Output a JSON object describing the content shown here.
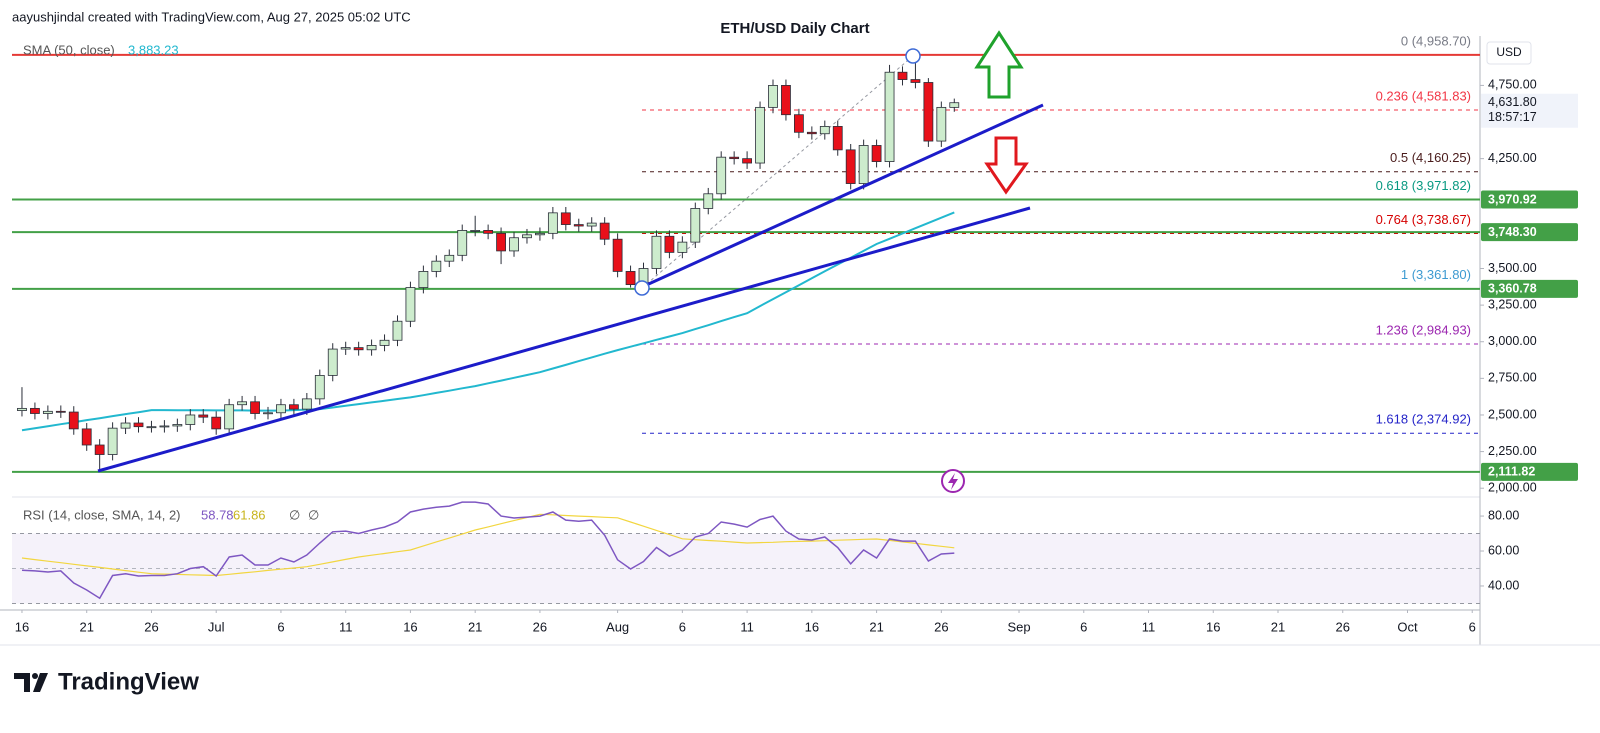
{
  "header": {
    "credit": "aayushjindal created with TradingView.com, Aug 27, 2025 05:02 UTC"
  },
  "footer": {
    "brand": "TradingView"
  },
  "chart_data": {
    "type": "candlestick",
    "title": "ETH/USD Daily Chart",
    "currency": "USD",
    "xlim": [
      -0.77,
      112.6
    ],
    "xticks": [
      {
        "value": 0,
        "label": "16"
      },
      {
        "value": 5,
        "label": "21"
      },
      {
        "value": 10,
        "label": "26"
      },
      {
        "value": 15,
        "label": "Jul"
      },
      {
        "value": 20,
        "label": "6"
      },
      {
        "value": 25,
        "label": "11"
      },
      {
        "value": 30,
        "label": "16"
      },
      {
        "value": 35,
        "label": "21"
      },
      {
        "value": 40,
        "label": "26"
      },
      {
        "value": 46,
        "label": "Aug"
      },
      {
        "value": 51,
        "label": "6"
      },
      {
        "value": 56,
        "label": "11"
      },
      {
        "value": 61,
        "label": "16"
      },
      {
        "value": 66,
        "label": "21"
      },
      {
        "value": 71,
        "label": "26"
      },
      {
        "value": 77,
        "label": "Sep"
      },
      {
        "value": 82,
        "label": "6"
      },
      {
        "value": 87,
        "label": "11"
      },
      {
        "value": 92,
        "label": "16"
      },
      {
        "value": 97,
        "label": "21"
      },
      {
        "value": 102,
        "label": "26"
      },
      {
        "value": 107,
        "label": "Oct"
      },
      {
        "value": 112,
        "label": "6"
      }
    ],
    "ylim": [
      1940,
      5060
    ],
    "yticks": [
      {
        "value": 2000,
        "label": "2,000.00"
      },
      {
        "value": 2250,
        "label": "2,250.00"
      },
      {
        "value": 2500,
        "label": "2,500.00"
      },
      {
        "value": 2750,
        "label": "2,750.00"
      },
      {
        "value": 3000,
        "label": "3,000.00"
      },
      {
        "value": 3250,
        "label": "3,250.00"
      },
      {
        "value": 3500,
        "label": "3,500.00"
      },
      {
        "value": 4250,
        "label": "4,250.00"
      },
      {
        "value": 4750,
        "label": "4,750.00"
      }
    ],
    "grid": false,
    "up_color": "#cdeccd",
    "down_color": "#e8101a",
    "outline": "#2a2e39",
    "candles": {
      "open": [
        2530,
        2545,
        2510,
        2525,
        2520,
        2405,
        2295,
        2230,
        2410,
        2445,
        2420,
        2420,
        2425,
        2435,
        2500,
        2485,
        2405,
        2570,
        2590,
        2510,
        2515,
        2570,
        2540,
        2610,
        2770,
        2950,
        2960,
        2945,
        2975,
        3010,
        3140,
        3370,
        3480,
        3550,
        3590,
        3760,
        3760,
        3740,
        3620,
        3710,
        3730,
        3740,
        3880,
        3800,
        3790,
        3810,
        3700,
        3480,
        3390,
        3500,
        3720,
        3610,
        3680,
        3910,
        4010,
        4260,
        4250,
        4220,
        4600,
        4750,
        4550,
        4430,
        4420,
        4470,
        4310,
        4080,
        4340,
        4230,
        4840,
        4790,
        4770,
        4370,
        4600
      ],
      "high": [
        2690,
        2585,
        2565,
        2565,
        2560,
        2445,
        2335,
        2450,
        2485,
        2485,
        2460,
        2465,
        2475,
        2540,
        2540,
        2525,
        2610,
        2630,
        2630,
        2555,
        2610,
        2610,
        2650,
        2810,
        2990,
        3000,
        3000,
        3015,
        3050,
        3180,
        3410,
        3520,
        3590,
        3630,
        3800,
        3860,
        3800,
        3780,
        3750,
        3770,
        3780,
        3920,
        3920,
        3840,
        3850,
        3850,
        3740,
        3520,
        3540,
        3760,
        3760,
        3720,
        3950,
        4050,
        4300,
        4300,
        4300,
        4640,
        4790,
        4790,
        4590,
        4470,
        4510,
        4510,
        4350,
        4380,
        4380,
        4890,
        4880,
        4958.7,
        4800,
        4640,
        4660
      ],
      "low": [
        2490,
        2470,
        2470,
        2480,
        2365,
        2255,
        2111.82,
        2190,
        2370,
        2380,
        2380,
        2380,
        2385,
        2395,
        2445,
        2365,
        2365,
        2530,
        2470,
        2470,
        2475,
        2500,
        2500,
        2570,
        2730,
        2910,
        2905,
        2905,
        2935,
        2970,
        3100,
        3330,
        3440,
        3510,
        3550,
        3720,
        3700,
        3530,
        3580,
        3670,
        3690,
        3700,
        3760,
        3750,
        3750,
        3660,
        3440,
        3370,
        3361.8,
        3460,
        3570,
        3570,
        3640,
        3870,
        3970,
        4210,
        4180,
        4180,
        4560,
        4510,
        4390,
        4380,
        4380,
        4270,
        4040,
        4040,
        4190,
        4190,
        4750,
        4730,
        4330,
        4330,
        4570
      ],
      "close": [
        2545,
        2510,
        2525,
        2520,
        2405,
        2295,
        2230,
        2410,
        2445,
        2420,
        2420,
        2425,
        2435,
        2500,
        2485,
        2405,
        2570,
        2590,
        2510,
        2515,
        2570,
        2540,
        2610,
        2770,
        2950,
        2960,
        2945,
        2975,
        3010,
        3140,
        3370,
        3480,
        3550,
        3590,
        3760,
        3760,
        3740,
        3620,
        3710,
        3730,
        3740,
        3880,
        3800,
        3790,
        3810,
        3700,
        3480,
        3390,
        3500,
        3720,
        3610,
        3680,
        3910,
        4010,
        4260,
        4250,
        4220,
        4600,
        4750,
        4550,
        4430,
        4420,
        4470,
        4310,
        4080,
        4340,
        4230,
        4840,
        4790,
        4770,
        4370,
        4600,
        4631.8
      ]
    },
    "sma": {
      "name": "SMA (50, close)",
      "label": "3,883.23",
      "color": "#22b8cf",
      "values": [
        2396,
        2410,
        2423,
        2437,
        2451,
        2465,
        2478,
        2492,
        2506,
        2519,
        2533,
        2533,
        2532,
        2532,
        2532,
        2531,
        2531,
        2531,
        2530,
        2530,
        2530,
        2533,
        2537,
        2540,
        2551,
        2563,
        2574,
        2586,
        2597,
        2609,
        2620,
        2635,
        2651,
        2666,
        2682,
        2697,
        2716,
        2735,
        2754,
        2773,
        2792,
        2817,
        2842,
        2868,
        2893,
        2918,
        2943,
        2966,
        2989,
        3013,
        3036,
        3059,
        3086,
        3113,
        3141,
        3168,
        3195,
        3243,
        3291,
        3338,
        3386,
        3434,
        3481,
        3527,
        3574,
        3620,
        3667,
        3703,
        3739,
        3775,
        3811,
        3847,
        3883.23
      ]
    },
    "resistance": {
      "value": 4958.7,
      "color": "#e53935"
    },
    "level_color": "#43a047",
    "levels": [
      {
        "value": 3970.92,
        "label": "3,970.92"
      },
      {
        "value": 3748.3,
        "label": "3,748.30"
      },
      {
        "value": 3360.78,
        "label": "3,360.78"
      },
      {
        "value": 2111.82,
        "label": "2,111.82"
      }
    ],
    "last_price": {
      "value": 4631.8,
      "label": "4,631.80",
      "countdown": "18:57:17"
    },
    "fib_levels": [
      {
        "label": "0 (4,958.70)",
        "price": 4958.7,
        "color": "#787b86"
      },
      {
        "label": "0.236 (4,581.83)",
        "price": 4581.83,
        "color": "#f23645"
      },
      {
        "label": "0.5 (4,160.25)",
        "price": 4160.25,
        "color": "#4a1c1c"
      },
      {
        "label": "0.618 (3,971.82)",
        "price": 3971.82,
        "color": "#089981"
      },
      {
        "label": "0.764 (3,738.67)",
        "price": 3738.67,
        "color": "#d50000"
      },
      {
        "label": "1 (3,361.80)",
        "price": 3361.8,
        "color": "#3d9ad1"
      },
      {
        "label": "1.236 (2,984.93)",
        "price": 2984.93,
        "color": "#9c27b0"
      },
      {
        "label": "1.618 (2,374.92)",
        "price": 2374.92,
        "color": "#2424c8"
      }
    ],
    "rsi": {
      "type": "line",
      "name": "RSI (14, close, SMA, 14, 2)",
      "label": "58.78",
      "color": "#7e57c2",
      "values": [
        49,
        48.6,
        48,
        48.6,
        41.7,
        37.7,
        33,
        46,
        47,
        45.7,
        46,
        46,
        47,
        50,
        51,
        45.7,
        56.6,
        57.7,
        52,
        52,
        56,
        53.7,
        57.7,
        64.6,
        71,
        71.4,
        70,
        72,
        73.7,
        76.6,
        82.3,
        84,
        85,
        85.7,
        88,
        88,
        86.9,
        80,
        78.9,
        79.4,
        80,
        82.3,
        77.7,
        77,
        77.7,
        69,
        55,
        49.7,
        54,
        62,
        57,
        60.6,
        68,
        70,
        76.6,
        75.4,
        73.7,
        78,
        80,
        71.4,
        66.9,
        66.3,
        68,
        62,
        52.6,
        60.6,
        56,
        66.9,
        65.7,
        65.7,
        54.3,
        58.3,
        58.78
      ],
      "sma": {
        "label": "61.86",
        "color": "#f2d640",
        "values": [
          56,
          55.1,
          54.2,
          53.3,
          52.4,
          51.5,
          50.6,
          49.7,
          48.8,
          47.9,
          47,
          46.8,
          46.6,
          46.4,
          46.2,
          46,
          46.7,
          47.4,
          48.1,
          48.9,
          49.6,
          50.3,
          51,
          52.4,
          53.8,
          55.2,
          56.6,
          57.6,
          58.6,
          59.6,
          60.6,
          62.9,
          65.2,
          67.4,
          69.7,
          72,
          73.8,
          75.6,
          77.4,
          79.2,
          81,
          80.7,
          80.3,
          80,
          79.7,
          79.3,
          79,
          76.6,
          74.2,
          71.8,
          69.4,
          67,
          66.5,
          66,
          65.6,
          65.1,
          64.6,
          64.8,
          65,
          65.3,
          65.5,
          65.7,
          65.9,
          66.2,
          66.4,
          66.7,
          66.9,
          66.1,
          65.2,
          64.4,
          63.5,
          62.7,
          61.86
        ]
      },
      "na_labels": [
        "∅",
        "∅"
      ],
      "ylim": [
        27.4,
        90.9
      ],
      "yticks": [
        {
          "value": 40,
          "label": "40.00"
        },
        {
          "value": 60,
          "label": "60.00"
        },
        {
          "value": 80,
          "label": "80.00"
        }
      ],
      "band": [
        30,
        70
      ],
      "mid": 50,
      "band_color": "#7e57c2"
    }
  }
}
